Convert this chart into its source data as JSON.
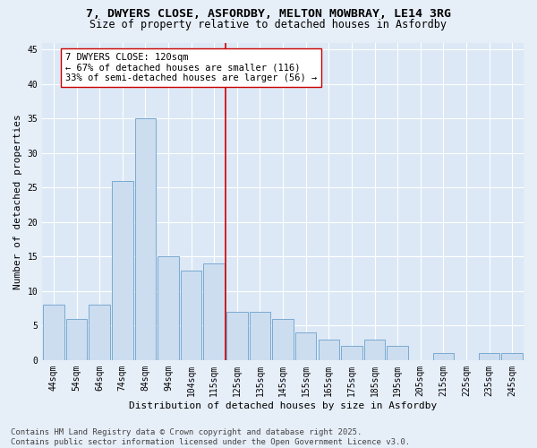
{
  "title_line1": "7, DWYERS CLOSE, ASFORDBY, MELTON MOWBRAY, LE14 3RG",
  "title_line2": "Size of property relative to detached houses in Asfordby",
  "xlabel": "Distribution of detached houses by size in Asfordby",
  "ylabel": "Number of detached properties",
  "categories": [
    "44sqm",
    "54sqm",
    "64sqm",
    "74sqm",
    "84sqm",
    "94sqm",
    "104sqm",
    "115sqm",
    "125sqm",
    "135sqm",
    "145sqm",
    "155sqm",
    "165sqm",
    "175sqm",
    "185sqm",
    "195sqm",
    "205sqm",
    "215sqm",
    "225sqm",
    "235sqm",
    "245sqm"
  ],
  "values": [
    8,
    6,
    8,
    26,
    35,
    15,
    13,
    14,
    7,
    7,
    6,
    4,
    3,
    2,
    3,
    2,
    0,
    1,
    0,
    1,
    1
  ],
  "bar_color": "#ccddf0",
  "bar_edge_color": "#7aaad0",
  "vline_color": "#cc0000",
  "annotation_text": "7 DWYERS CLOSE: 120sqm\n← 67% of detached houses are smaller (116)\n33% of semi-detached houses are larger (56) →",
  "annotation_box_facecolor": "#ffffff",
  "annotation_box_edgecolor": "#cc0000",
  "ylim": [
    0,
    46
  ],
  "yticks": [
    0,
    5,
    10,
    15,
    20,
    25,
    30,
    35,
    40,
    45
  ],
  "background_color": "#e6eef8",
  "plot_bg_color": "#dce8f5",
  "grid_color": "#ffffff",
  "footer": "Contains HM Land Registry data © Crown copyright and database right 2025.\nContains public sector information licensed under the Open Government Licence v3.0.",
  "title_fontsize": 9.5,
  "subtitle_fontsize": 8.5,
  "axis_label_fontsize": 8,
  "tick_fontsize": 7,
  "annotation_fontsize": 7.5,
  "footer_fontsize": 6.5
}
